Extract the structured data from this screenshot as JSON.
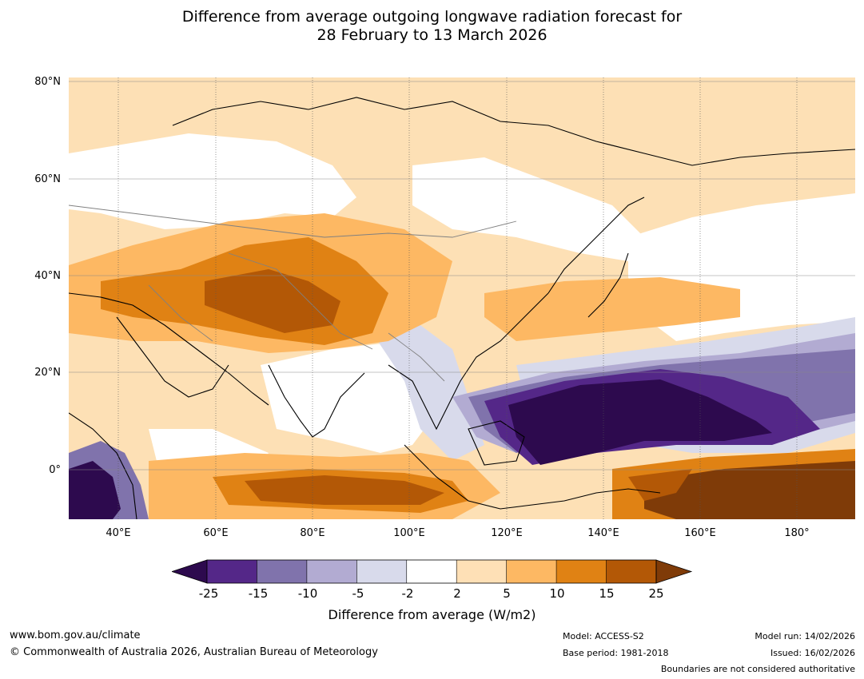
{
  "title": {
    "line1": "Difference from average outgoing longwave radiation forecast for",
    "line2": "28 February to 13 March 2026"
  },
  "map": {
    "lat_labels": [
      "80°N",
      "60°N",
      "40°N",
      "20°N",
      "0°"
    ],
    "lon_labels": [
      "40°E",
      "60°E",
      "80°E",
      "100°E",
      "120°E",
      "140°E",
      "160°E",
      "180°"
    ]
  },
  "colorbar": {
    "ticks": [
      "-25",
      "-15",
      "-10",
      "-5",
      "-2",
      "2",
      "5",
      "10",
      "15",
      "25"
    ],
    "colors": [
      "#2d0a4e",
      "#542788",
      "#8073ac",
      "#b2abd2",
      "#d8daeb",
      "#ffffff",
      "#fee0b6",
      "#fdb863",
      "#e08214",
      "#b35806",
      "#7f3b08"
    ],
    "label": "Difference from average (W/m2)"
  },
  "footer": {
    "url": "www.bom.gov.au/climate",
    "copyright": "© Commonwealth of Australia 2026, Australian Bureau of Meteorology",
    "model": "Model: ACCESS-S2",
    "base_period": "Base period: 1981-2018",
    "model_run": "Model run: 14/02/2026",
    "issued": "Issued: 16/02/2026",
    "disclaimer": "Boundaries are not considered authoritative"
  }
}
